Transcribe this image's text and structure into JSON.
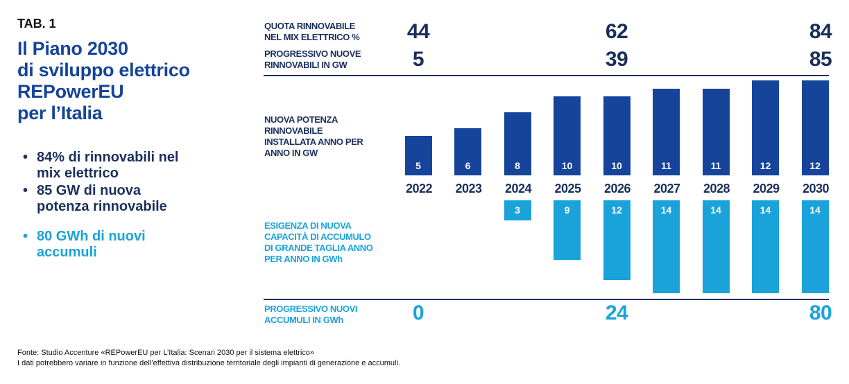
{
  "left": {
    "tab": "TAB. 1",
    "title_lines": [
      "Il Piano 2030",
      "di sviluppo elettrico",
      "REPowerEU",
      "per l’Italia"
    ],
    "bullets": [
      {
        "lines": [
          "84% di rinnovabili nel",
          "mix elettrico"
        ],
        "color": "#1b2f5c"
      },
      {
        "lines": [
          "85 GW di nuova",
          "potenza rinnovabile"
        ],
        "color": "#1b2f5c"
      },
      {
        "lines": [
          "80 GWh di nuovi",
          "accumuli"
        ],
        "color": "#1aa3db"
      }
    ],
    "bullet_symbol": "•"
  },
  "chart_data": {
    "type": "bar",
    "categories": [
      "2022",
      "2023",
      "2024",
      "2025",
      "2026",
      "2027",
      "2028",
      "2029",
      "2030"
    ],
    "series": [
      {
        "name": "NUOVA POTENZA RINNOVABILE INSTALLATA ANNO PER ANNO IN GW",
        "label_lines": [
          "NUOVA POTENZA",
          "RINNOVABILE",
          "INSTALLATA ANNO PER",
          "ANNO IN GW"
        ],
        "color": "#15449a",
        "direction": "up",
        "values": [
          5,
          6,
          8,
          10,
          10,
          11,
          11,
          12,
          12
        ]
      },
      {
        "name": "ESIGENZA DI NUOVA CAPACITÀ DI ACCUMULO DI GRANDE TAGLIA ANNO PER ANNO IN GWh",
        "label_lines": [
          "ESIGENZA DI NUOVA",
          "CAPACITÀ DI ACCUMULO",
          "DI GRANDE TAGLIA ANNO",
          "PER ANNO IN GWh"
        ],
        "color": "#1aa3db",
        "direction": "down",
        "values": [
          null,
          null,
          3,
          9,
          12,
          14,
          14,
          14,
          14
        ]
      }
    ],
    "summary_rows": [
      {
        "label_lines": [
          "QUOTA RINNOVABILE",
          "NEL MIX ELETTRICO %"
        ],
        "color": "#1b2f5c",
        "points": [
          {
            "year": "2022",
            "value": "44"
          },
          {
            "year": "2026",
            "value": "62"
          },
          {
            "year": "2030",
            "value": "84"
          }
        ]
      },
      {
        "label_lines": [
          "PROGRESSIVO NUOVE",
          "RINNOVABILI IN GW"
        ],
        "color": "#1b2f5c",
        "points": [
          {
            "year": "2022",
            "value": "5"
          },
          {
            "year": "2026",
            "value": "39"
          },
          {
            "year": "2030",
            "value": "85"
          }
        ]
      },
      {
        "label_lines": [
          "PROGRESSIVO NUOVI",
          "ACCUMULI IN GWh"
        ],
        "color": "#1aa3db",
        "points": [
          {
            "year": "2022",
            "value": "0"
          },
          {
            "year": "2026",
            "value": "24"
          },
          {
            "year": "2030",
            "value": "80"
          }
        ]
      }
    ]
  },
  "footer": {
    "source": "Fonte: Studio Accenture «REPowerEU per L’Italia: Scenari 2030 per il sistema elettrico»",
    "note": "I dati potrebbero variare in funzione dell’effettiva distribuzione territoriale degli impianti di generazione e accumuli."
  }
}
